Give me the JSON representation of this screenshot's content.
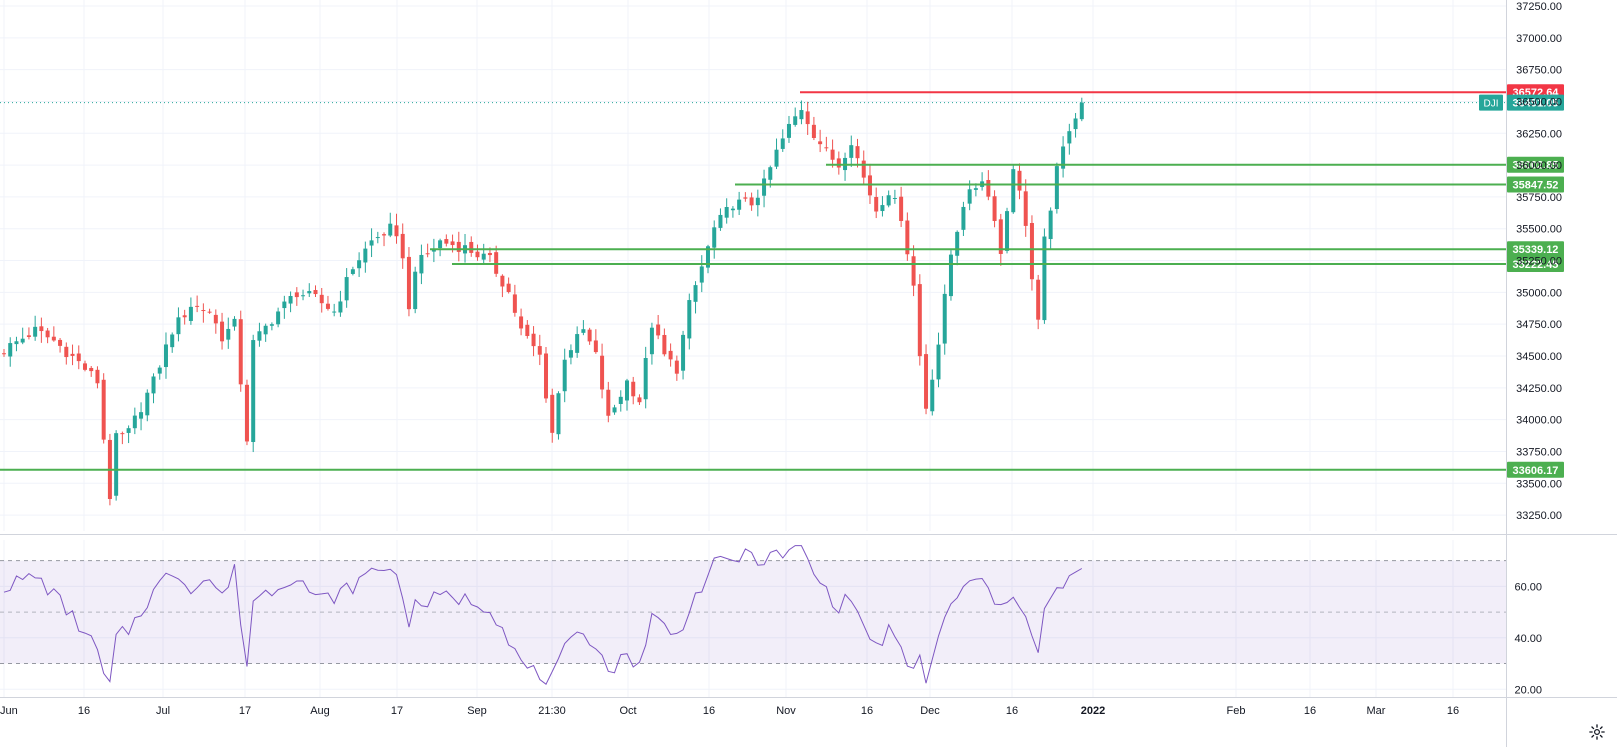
{
  "chart_data": [
    {
      "type": "candlestick",
      "symbol": "DJI",
      "ylim": [
        33125,
        37250
      ],
      "y_ticks": [
        33250,
        33500,
        33750,
        34000,
        34250,
        34500,
        34750,
        35000,
        35250,
        35500,
        35750,
        36000,
        36250,
        36500,
        36750,
        37000,
        37250
      ],
      "y_tick_labels": [
        "33250.00",
        "33500.00",
        "33750.00",
        "34000.00",
        "34250.00",
        "34500.00",
        "34750.00",
        "35000.00",
        "35250.00",
        "35500.00",
        "35750.00",
        "36000.00",
        "36250.00",
        "36500.00",
        "36750.00",
        "37000.00",
        "37250.00"
      ],
      "x_tick_labels": [
        "Jun",
        "16",
        "Jul",
        "17",
        "Aug",
        "17",
        "Sep",
        "21:30",
        "Oct",
        "16",
        "Nov",
        "16",
        "Dec",
        "16",
        "2022",
        "Feb",
        "16",
        "Mar",
        "16"
      ],
      "last_price": 36491.05,
      "last_price_label": "36491.05",
      "colors": {
        "up": "#26a69a",
        "down": "#ef5350",
        "support": "#4caf50",
        "resistance": "#f23645",
        "last": "#26a69a"
      },
      "levels": [
        {
          "kind": "resistance",
          "value": 36572.64,
          "label": "36572.64"
        },
        {
          "kind": "support",
          "value": 36002.85,
          "label": "36002.85"
        },
        {
          "kind": "support",
          "value": 35847.52,
          "label": "35847.52"
        },
        {
          "kind": "support",
          "value": 35339.12,
          "label": "35339.12"
        },
        {
          "kind": "support",
          "value": 35222.45,
          "label": "35222.45"
        },
        {
          "kind": "support",
          "value": 33606.17,
          "label": "33606.17"
        }
      ],
      "close_path": [
        [
          0,
          34550
        ],
        [
          5,
          34700
        ],
        [
          8,
          34620
        ],
        [
          12,
          34450
        ],
        [
          15,
          34300
        ],
        [
          16,
          33850
        ],
        [
          17,
          33400
        ],
        [
          18,
          33850
        ],
        [
          20,
          33900
        ],
        [
          24,
          34300
        ],
        [
          27,
          34700
        ],
        [
          30,
          34900
        ],
        [
          33,
          34850
        ],
        [
          35,
          34650
        ],
        [
          37,
          34750
        ],
        [
          39,
          33850
        ],
        [
          40,
          34600
        ],
        [
          44,
          34850
        ],
        [
          47,
          35000
        ],
        [
          50,
          34950
        ],
        [
          53,
          34850
        ],
        [
          56,
          35200
        ],
        [
          59,
          35400
        ],
        [
          62,
          35500
        ],
        [
          64,
          35300
        ],
        [
          65,
          34850
        ],
        [
          66,
          35200
        ],
        [
          70,
          35400
        ],
        [
          74,
          35350
        ],
        [
          78,
          35250
        ],
        [
          81,
          35000
        ],
        [
          83,
          34700
        ],
        [
          86,
          34500
        ],
        [
          88,
          33900
        ],
        [
          90,
          34500
        ],
        [
          93,
          34700
        ],
        [
          95,
          34500
        ],
        [
          97,
          34000
        ],
        [
          100,
          34300
        ],
        [
          102,
          34150
        ],
        [
          104,
          34750
        ],
        [
          106,
          34500
        ],
        [
          108,
          34400
        ],
        [
          110,
          34900
        ],
        [
          112,
          35200
        ],
        [
          114,
          35500
        ],
        [
          117,
          35700
        ],
        [
          120,
          35700
        ],
        [
          122,
          35850
        ],
        [
          124,
          36100
        ],
        [
          126,
          36300
        ],
        [
          128,
          36450
        ],
        [
          130,
          36250
        ],
        [
          132,
          36100
        ],
        [
          134,
          36000
        ],
        [
          136,
          36200
        ],
        [
          138,
          35900
        ],
        [
          140,
          35650
        ],
        [
          142,
          35800
        ],
        [
          144,
          35600
        ],
        [
          146,
          35050
        ],
        [
          147,
          34500
        ],
        [
          148,
          34100
        ],
        [
          150,
          34600
        ],
        [
          152,
          35300
        ],
        [
          154,
          35700
        ],
        [
          157,
          35900
        ],
        [
          159,
          35600
        ],
        [
          160,
          35300
        ],
        [
          162,
          36000
        ],
        [
          164,
          35550
        ],
        [
          165,
          35100
        ],
        [
          166,
          34750
        ],
        [
          167,
          35400
        ],
        [
          169,
          35950
        ],
        [
          171,
          36300
        ],
        [
          173,
          36491.05
        ]
      ],
      "y_range_visible": [
        33125,
        37250
      ]
    },
    {
      "type": "line",
      "indicator": "RSI",
      "ylim": [
        17,
        78
      ],
      "y_ticks": [
        20,
        40,
        60
      ],
      "y_tick_labels": [
        "20.00",
        "40.00",
        "60.00"
      ],
      "bands": [
        30,
        50,
        70
      ],
      "series_color": "#7e57c2",
      "band_fill": "rgba(126,87,194,0.10)",
      "values_path": [
        [
          0,
          60
        ],
        [
          5,
          64
        ],
        [
          8,
          57
        ],
        [
          12,
          45
        ],
        [
          15,
          35
        ],
        [
          16,
          25
        ],
        [
          17,
          21
        ],
        [
          18,
          40
        ],
        [
          20,
          43
        ],
        [
          24,
          58
        ],
        [
          27,
          66
        ],
        [
          30,
          60
        ],
        [
          33,
          63
        ],
        [
          35,
          56
        ],
        [
          37,
          66
        ],
        [
          39,
          29
        ],
        [
          40,
          55
        ],
        [
          44,
          60
        ],
        [
          47,
          65
        ],
        [
          50,
          55
        ],
        [
          53,
          56
        ],
        [
          56,
          60
        ],
        [
          59,
          66
        ],
        [
          62,
          68
        ],
        [
          64,
          58
        ],
        [
          65,
          46
        ],
        [
          66,
          52
        ],
        [
          70,
          56
        ],
        [
          74,
          55
        ],
        [
          78,
          52
        ],
        [
          81,
          40
        ],
        [
          83,
          30
        ],
        [
          86,
          25
        ],
        [
          88,
          24
        ],
        [
          90,
          35
        ],
        [
          93,
          42
        ],
        [
          95,
          38
        ],
        [
          97,
          27
        ],
        [
          100,
          33
        ],
        [
          102,
          30
        ],
        [
          104,
          48
        ],
        [
          106,
          45
        ],
        [
          108,
          40
        ],
        [
          110,
          52
        ],
        [
          112,
          60
        ],
        [
          114,
          68
        ],
        [
          117,
          71
        ],
        [
          120,
          72
        ],
        [
          122,
          70
        ],
        [
          124,
          72
        ],
        [
          126,
          73
        ],
        [
          128,
          75
        ],
        [
          130,
          65
        ],
        [
          132,
          58
        ],
        [
          134,
          52
        ],
        [
          136,
          56
        ],
        [
          138,
          44
        ],
        [
          140,
          36
        ],
        [
          142,
          43
        ],
        [
          144,
          34
        ],
        [
          146,
          27
        ],
        [
          147,
          32
        ],
        [
          148,
          24
        ],
        [
          150,
          40
        ],
        [
          152,
          52
        ],
        [
          154,
          60
        ],
        [
          157,
          62
        ],
        [
          159,
          55
        ],
        [
          160,
          50
        ],
        [
          162,
          58
        ],
        [
          164,
          50
        ],
        [
          165,
          40
        ],
        [
          166,
          34
        ],
        [
          167,
          50
        ],
        [
          169,
          58
        ],
        [
          171,
          63
        ],
        [
          173,
          65
        ]
      ]
    }
  ]
}
